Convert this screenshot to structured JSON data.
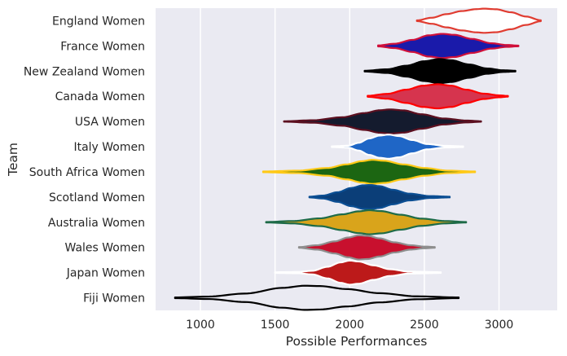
{
  "chart_data": {
    "type": "violin",
    "orientation": "horizontal",
    "xlabel": "Possible Performances",
    "ylabel": "Team",
    "xlim": [
      700,
      3390
    ],
    "xticks": [
      1000,
      1500,
      2000,
      2500,
      3000
    ],
    "grid": true,
    "background": "#EAEAF2",
    "series": [
      {
        "name": "England Women",
        "fill": "#FFFFFF",
        "stroke": "#E03C31",
        "min": 2450,
        "max": 3280,
        "profile": [
          [
            2450,
            0.03
          ],
          [
            2550,
            0.25
          ],
          [
            2650,
            0.55
          ],
          [
            2750,
            0.8
          ],
          [
            2850,
            0.96
          ],
          [
            2900,
            1.0
          ],
          [
            2980,
            0.95
          ],
          [
            3080,
            0.7
          ],
          [
            3180,
            0.35
          ],
          [
            3280,
            0.04
          ]
        ]
      },
      {
        "name": "France Women",
        "fill": "#1A1AAA",
        "stroke": "#D0103A",
        "min": 2190,
        "max": 3130,
        "profile": [
          [
            2190,
            0.04
          ],
          [
            2300,
            0.18
          ],
          [
            2420,
            0.5
          ],
          [
            2530,
            0.88
          ],
          [
            2620,
            1.0
          ],
          [
            2700,
            0.92
          ],
          [
            2820,
            0.58
          ],
          [
            2950,
            0.22
          ],
          [
            3050,
            0.08
          ],
          [
            3130,
            0.03
          ]
        ]
      },
      {
        "name": "New Zealand Women",
        "fill": "#000000",
        "stroke": "#000000",
        "min": 2100,
        "max": 3110,
        "profile": [
          [
            2100,
            0.03
          ],
          [
            2250,
            0.15
          ],
          [
            2380,
            0.45
          ],
          [
            2500,
            0.82
          ],
          [
            2600,
            1.0
          ],
          [
            2680,
            0.9
          ],
          [
            2800,
            0.55
          ],
          [
            2920,
            0.22
          ],
          [
            3030,
            0.07
          ],
          [
            3110,
            0.03
          ]
        ]
      },
      {
        "name": "Canada Women",
        "fill": "#D6344E",
        "stroke": "#FF0000",
        "min": 2120,
        "max": 3060,
        "profile": [
          [
            2120,
            0.04
          ],
          [
            2250,
            0.2
          ],
          [
            2380,
            0.55
          ],
          [
            2490,
            0.88
          ],
          [
            2590,
            1.0
          ],
          [
            2680,
            0.88
          ],
          [
            2780,
            0.55
          ],
          [
            2900,
            0.22
          ],
          [
            3000,
            0.08
          ],
          [
            3060,
            0.03
          ]
        ]
      },
      {
        "name": "USA Women",
        "fill": "#141B2E",
        "stroke": "#5C1020",
        "min": 1560,
        "max": 2880,
        "profile": [
          [
            1560,
            0.02
          ],
          [
            1750,
            0.1
          ],
          [
            1950,
            0.35
          ],
          [
            2100,
            0.7
          ],
          [
            2200,
            0.93
          ],
          [
            2270,
            1.0
          ],
          [
            2360,
            0.92
          ],
          [
            2480,
            0.6
          ],
          [
            2630,
            0.25
          ],
          [
            2780,
            0.08
          ],
          [
            2880,
            0.02
          ]
        ]
      },
      {
        "name": "Italy Women",
        "fill": "#1F66C6",
        "stroke": "#FFFFFF",
        "min": 1880,
        "max": 2760,
        "profile": [
          [
            1880,
            0.03
          ],
          [
            1990,
            0.08
          ],
          [
            2060,
            0.32
          ],
          [
            2130,
            0.68
          ],
          [
            2200,
            0.92
          ],
          [
            2260,
            1.0
          ],
          [
            2330,
            0.88
          ],
          [
            2420,
            0.55
          ],
          [
            2520,
            0.22
          ],
          [
            2640,
            0.07
          ],
          [
            2760,
            0.03
          ]
        ]
      },
      {
        "name": "South Africa Women",
        "fill": "#1C6612",
        "stroke": "#FFC917",
        "min": 1420,
        "max": 2840,
        "profile": [
          [
            1420,
            0.03
          ],
          [
            1650,
            0.1
          ],
          [
            1850,
            0.32
          ],
          [
            1980,
            0.62
          ],
          [
            2080,
            0.88
          ],
          [
            2150,
            1.0
          ],
          [
            2230,
            0.92
          ],
          [
            2360,
            0.62
          ],
          [
            2500,
            0.32
          ],
          [
            2660,
            0.1
          ],
          [
            2840,
            0.03
          ]
        ]
      },
      {
        "name": "Scotland Women",
        "fill": "#0B3E78",
        "stroke": "#0B4E93",
        "min": 1730,
        "max": 2670,
        "profile": [
          [
            1730,
            0.03
          ],
          [
            1820,
            0.12
          ],
          [
            1920,
            0.4
          ],
          [
            2010,
            0.75
          ],
          [
            2090,
            0.97
          ],
          [
            2140,
            1.0
          ],
          [
            2200,
            0.9
          ],
          [
            2290,
            0.6
          ],
          [
            2400,
            0.28
          ],
          [
            2540,
            0.08
          ],
          [
            2670,
            0.03
          ]
        ]
      },
      {
        "name": "Australia Women",
        "fill": "#D9A41B",
        "stroke": "#1E6B48",
        "min": 1440,
        "max": 2780,
        "profile": [
          [
            1440,
            0.02
          ],
          [
            1620,
            0.1
          ],
          [
            1800,
            0.32
          ],
          [
            1950,
            0.65
          ],
          [
            2060,
            0.9
          ],
          [
            2130,
            1.0
          ],
          [
            2210,
            0.92
          ],
          [
            2340,
            0.62
          ],
          [
            2480,
            0.3
          ],
          [
            2640,
            0.1
          ],
          [
            2780,
            0.02
          ]
        ]
      },
      {
        "name": "Wales Women",
        "fill": "#C8102E",
        "stroke": "#8E8E8E",
        "min": 1660,
        "max": 2570,
        "profile": [
          [
            1660,
            0.03
          ],
          [
            1780,
            0.18
          ],
          [
            1900,
            0.5
          ],
          [
            1990,
            0.82
          ],
          [
            2060,
            1.0
          ],
          [
            2120,
            0.96
          ],
          [
            2200,
            0.75
          ],
          [
            2300,
            0.42
          ],
          [
            2410,
            0.18
          ],
          [
            2500,
            0.07
          ],
          [
            2570,
            0.03
          ]
        ]
      },
      {
        "name": "Japan Women",
        "fill": "#BC1A1A",
        "stroke": "#FFFFFF",
        "min": 1500,
        "max": 2610,
        "profile": [
          [
            1500,
            0.03
          ],
          [
            1650,
            0.05
          ],
          [
            1750,
            0.15
          ],
          [
            1850,
            0.48
          ],
          [
            1940,
            0.85
          ],
          [
            2000,
            1.0
          ],
          [
            2060,
            0.92
          ],
          [
            2160,
            0.6
          ],
          [
            2270,
            0.28
          ],
          [
            2400,
            0.08
          ],
          [
            2610,
            0.03
          ]
        ]
      },
      {
        "name": "Fiji Women",
        "fill": "#EAEAF2",
        "stroke": "#000000",
        "min": 830,
        "max": 2730,
        "profile": [
          [
            830,
            0.03
          ],
          [
            1050,
            0.1
          ],
          [
            1300,
            0.35
          ],
          [
            1550,
            0.82
          ],
          [
            1700,
            1.0
          ],
          [
            1800,
            0.97
          ],
          [
            1980,
            0.72
          ],
          [
            2200,
            0.38
          ],
          [
            2450,
            0.12
          ],
          [
            2730,
            0.03
          ]
        ]
      }
    ]
  }
}
